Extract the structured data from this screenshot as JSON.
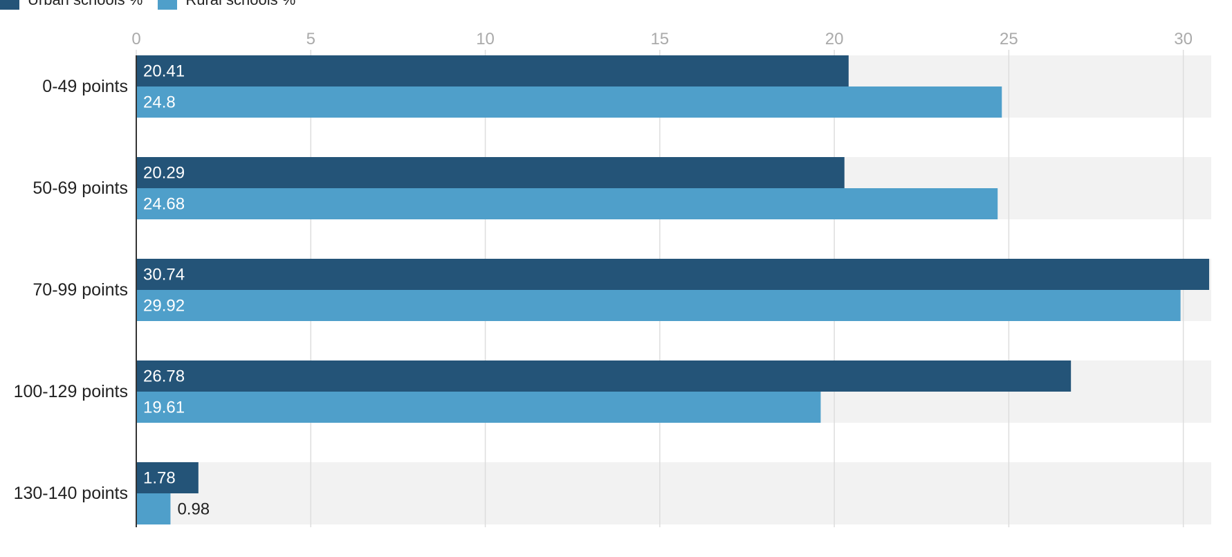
{
  "colors": {
    "urban": "#245478",
    "rural": "#4f9fca",
    "band": "#f2f2f2",
    "grid": "#dddddd",
    "tick_text": "#aaaaaa",
    "category_text": "#222222",
    "label_inside": "#ffffff",
    "label_outside": "#222222"
  },
  "chart_data": {
    "type": "bar",
    "orientation": "horizontal",
    "categories": [
      "0-49 points",
      "50-69 points",
      "70-99 points",
      "100-129 points",
      "130-140 points"
    ],
    "series": [
      {
        "name": "Urban schools %",
        "values": [
          20.41,
          20.29,
          30.74,
          26.78,
          1.78
        ]
      },
      {
        "name": "Rural schools %",
        "values": [
          24.8,
          24.68,
          29.92,
          19.61,
          0.98
        ]
      }
    ],
    "data_labels": [
      [
        "20.41",
        "20.29",
        "30.74",
        "26.78",
        "1.78"
      ],
      [
        "24.8",
        "24.68",
        "29.92",
        "19.61",
        "0.98"
      ]
    ],
    "x_ticks": [
      "0",
      "5",
      "10",
      "15",
      "20",
      "25",
      "30"
    ],
    "xlim": [
      0,
      30.8
    ],
    "xlabel": "",
    "ylabel": "",
    "grid": true,
    "legend_position": "top-left",
    "footnote": ""
  }
}
